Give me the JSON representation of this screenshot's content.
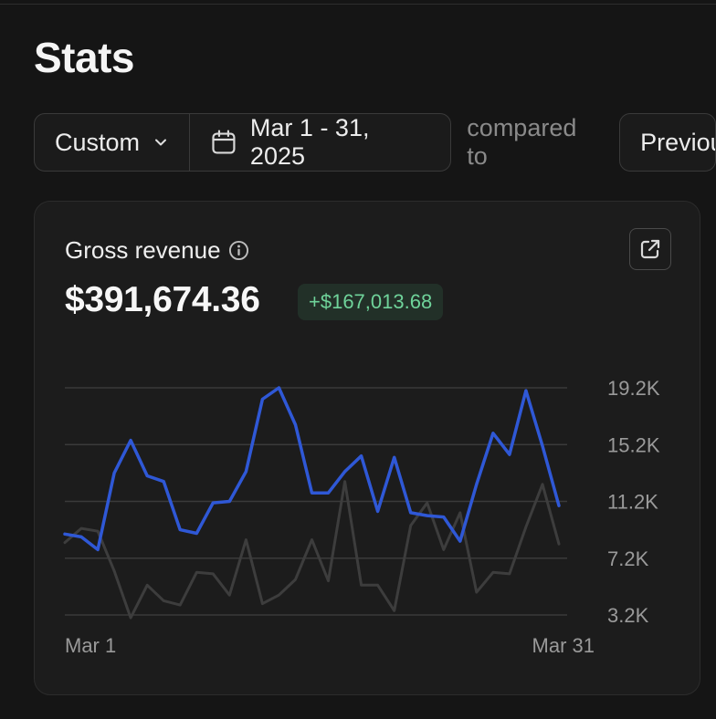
{
  "page": {
    "title": "Stats"
  },
  "filters": {
    "range_label": "Custom",
    "date_range": "Mar 1 - 31, 2025",
    "compared_to_label": "compared to",
    "comparison_label": "Previous period"
  },
  "card": {
    "metric_label": "Gross revenue",
    "metric_value": "$391,674.36",
    "delta": "+$167,013.68"
  },
  "chart_data": {
    "type": "line",
    "title": "",
    "x": [
      1,
      2,
      3,
      4,
      5,
      6,
      7,
      8,
      9,
      10,
      11,
      12,
      13,
      14,
      15,
      16,
      17,
      18,
      19,
      20,
      21,
      22,
      23,
      24,
      25,
      26,
      27,
      28,
      29,
      30,
      31
    ],
    "x_tick_labels": [
      "Mar 1",
      "Mar 31"
    ],
    "y_tick_labels": [
      "19.2K",
      "15.2K",
      "11.2K",
      "7.2K",
      "3.2K"
    ],
    "y_ticks": [
      19200,
      15200,
      11200,
      7200,
      3200
    ],
    "ylim": [
      3200,
      19200
    ],
    "grid": true,
    "series": [
      {
        "color": "#2f58d6",
        "values": [
          8900,
          8700,
          7800,
          13200,
          15500,
          13000,
          12600,
          9200,
          8950,
          11100,
          11200,
          13300,
          18400,
          19200,
          16600,
          11800,
          11800,
          13300,
          14400,
          10500,
          14300,
          10400,
          10200,
          10100,
          8400,
          12400,
          16000,
          14500,
          19000,
          15100,
          10900
        ]
      },
      {
        "color": "#3d3d3d",
        "values": [
          8300,
          9300,
          9100,
          6300,
          3000,
          5300,
          4200,
          3900,
          6200,
          6100,
          4600,
          8500,
          4000,
          4600,
          5700,
          8500,
          5600,
          12600,
          5300,
          5300,
          3500,
          9500,
          11100,
          7800,
          10400,
          4800,
          6200,
          6100,
          9400,
          12400,
          8200
        ]
      }
    ]
  }
}
